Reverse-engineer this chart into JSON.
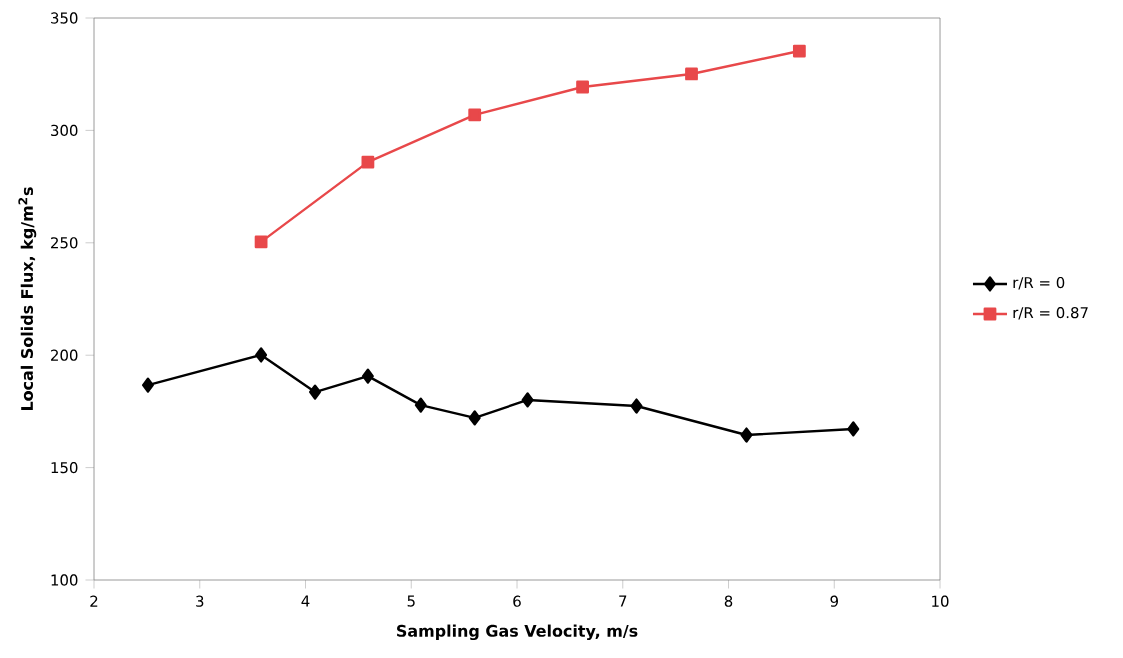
{
  "chart_data": {
    "type": "line",
    "xlabel": "Sampling Gas Velocity, m/s",
    "ylabel": "Local Solids Flux, kg/m$^{2}$s",
    "xlim": [
      2,
      10
    ],
    "xticks": [
      2,
      3,
      4,
      5,
      6,
      7,
      8,
      9,
      10
    ],
    "ylim": [
      100,
      350
    ],
    "yticks": [
      100,
      150,
      200,
      250,
      300,
      350
    ],
    "grid": false,
    "legend": "right",
    "line_style": "solid",
    "series": [
      {
        "name": "r/R = 0",
        "color": "#000000",
        "marker": "diamond",
        "x": [
          2.51,
          3.58,
          4.09,
          4.59,
          5.09,
          5.6,
          6.1,
          7.13,
          8.17,
          9.18
        ],
        "values": [
          186.7,
          200.1,
          183.6,
          190.7,
          177.8,
          172.1,
          180.1,
          177.4,
          164.5,
          167.2
        ]
      },
      {
        "name": "r/R = 0.87",
        "color": "#e8484a",
        "marker": "square",
        "x": [
          3.58,
          4.59,
          5.6,
          6.62,
          7.65,
          8.67
        ],
        "values": [
          250.4,
          285.9,
          306.9,
          319.3,
          325.1,
          335.3
        ]
      }
    ]
  }
}
